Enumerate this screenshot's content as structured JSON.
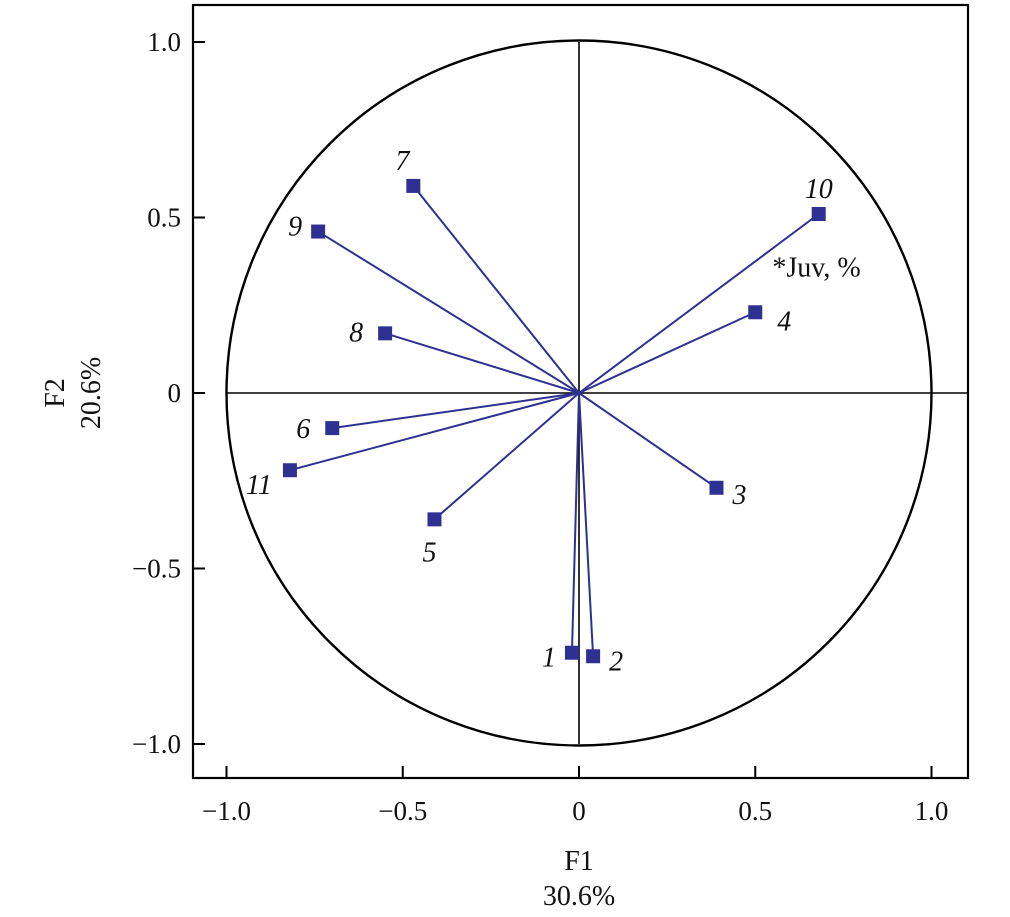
{
  "chart_data": {
    "type": "scatter",
    "subtype": "pca-correlation-circle",
    "xlabel": "F1",
    "xlabel_pct": "30.6%",
    "ylabel": "F2",
    "ylabel_pct": "20.6%",
    "xlim": [
      -1.1,
      1.1
    ],
    "ylim": [
      -1.1,
      1.1
    ],
    "xticks": [
      -1.0,
      -0.5,
      0,
      0.5,
      1.0
    ],
    "xtick_labels": [
      "−1.0",
      "−0.5",
      "0",
      "0.5",
      "1.0"
    ],
    "yticks": [
      1.0,
      0.5,
      0,
      -0.5,
      -1.0
    ],
    "ytick_labels": [
      "1.0",
      "0.5",
      "0",
      "−0.5",
      "−1.0"
    ],
    "unit_circle": true,
    "points": [
      {
        "label": "1",
        "x": -0.02,
        "y": -0.74
      },
      {
        "label": "2",
        "x": 0.04,
        "y": -0.75
      },
      {
        "label": "3",
        "x": 0.39,
        "y": -0.27
      },
      {
        "label": "4",
        "x": 0.5,
        "y": 0.23
      },
      {
        "label": "5",
        "x": -0.41,
        "y": -0.36
      },
      {
        "label": "6",
        "x": -0.7,
        "y": -0.1
      },
      {
        "label": "7",
        "x": -0.47,
        "y": 0.59
      },
      {
        "label": "8",
        "x": -0.55,
        "y": 0.17
      },
      {
        "label": "9",
        "x": -0.74,
        "y": 0.46
      },
      {
        "label": "10",
        "x": 0.68,
        "y": 0.51
      },
      {
        "label": "11",
        "x": -0.82,
        "y": -0.22
      }
    ],
    "annotation": {
      "text": "*Juv, %",
      "x": 0.54,
      "y": 0.32
    },
    "colors": {
      "vector": "#2e3192",
      "annotation": "#e8192c",
      "axis": "#000000"
    }
  }
}
